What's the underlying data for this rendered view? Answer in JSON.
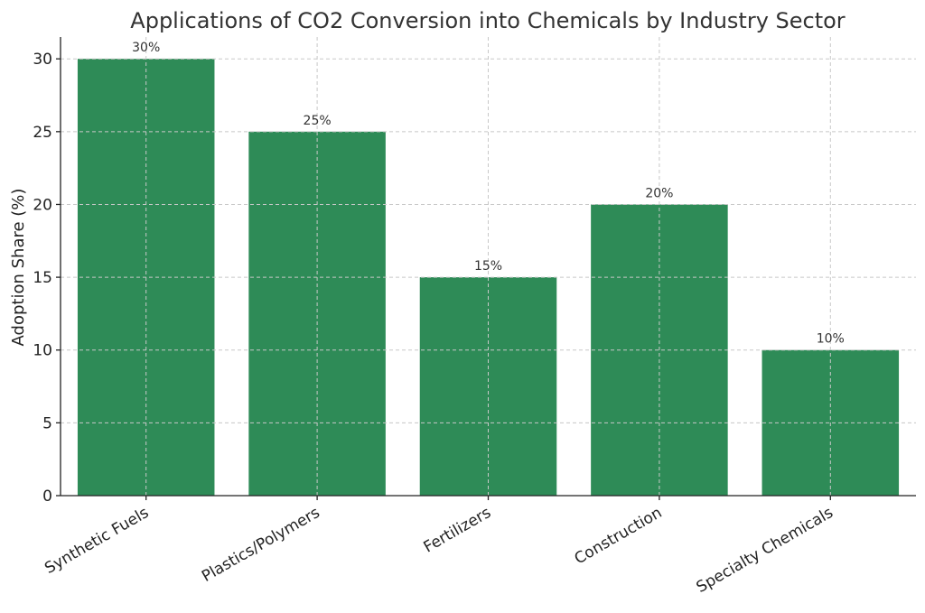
{
  "chart_data": {
    "type": "bar",
    "title": "Applications of CO2 Conversion into Chemicals by Industry Sector",
    "xlabel": "",
    "ylabel": "Adoption Share (%)",
    "categories": [
      "Synthetic Fuels",
      "Plastics/Polymers",
      "Fertilizers",
      "Construction",
      "Specialty Chemicals"
    ],
    "values": [
      30,
      25,
      15,
      20,
      10
    ],
    "data_labels": [
      "30%",
      "25%",
      "15%",
      "20%",
      "10%"
    ],
    "ylim": [
      0,
      31.5
    ],
    "yticks": [
      0,
      5,
      10,
      15,
      20,
      25,
      30
    ],
    "grid": true,
    "bar_color": "#2e8b57"
  }
}
